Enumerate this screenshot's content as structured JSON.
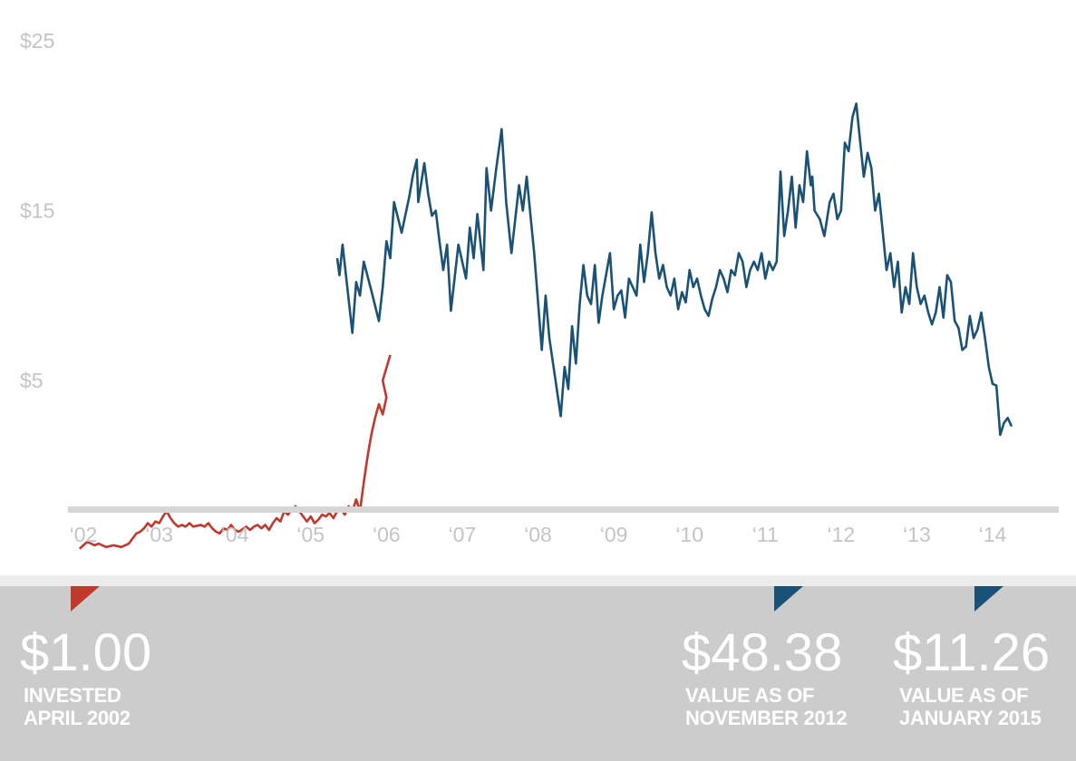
{
  "chart_data": {
    "type": "line",
    "ylim": [
      -6,
      27
    ],
    "y_ticks": [
      {
        "value": 25,
        "label": "$25"
      },
      {
        "value": 15,
        "label": "$15"
      },
      {
        "value": 5,
        "label": "$5"
      }
    ],
    "x_ticks": [
      {
        "value": 2002,
        "label": "‘02"
      },
      {
        "value": 2003,
        "label": "‘03"
      },
      {
        "value": 2004,
        "label": "‘04"
      },
      {
        "value": 2005,
        "label": "‘05"
      },
      {
        "value": 2006,
        "label": "‘06"
      },
      {
        "value": 2007,
        "label": "‘07"
      },
      {
        "value": 2008,
        "label": "‘08"
      },
      {
        "value": 2009,
        "label": "‘09"
      },
      {
        "value": 2010,
        "label": "‘10"
      },
      {
        "value": 2011,
        "label": "‘11"
      },
      {
        "value": 2012,
        "label": "‘12"
      },
      {
        "value": 2013,
        "label": "‘13"
      },
      {
        "value": 2014,
        "label": "‘14"
      }
    ],
    "xlim": [
      2001.85,
      2014.95
    ],
    "grid": false,
    "series": [
      {
        "color": "#c0392b",
        "points": [
          [
            2001.95,
            -4.9
          ],
          [
            2002.0,
            -4.7
          ],
          [
            2002.05,
            -4.5
          ],
          [
            2002.1,
            -4.6
          ],
          [
            2002.15,
            -4.7
          ],
          [
            2002.2,
            -4.6
          ],
          [
            2002.25,
            -4.7
          ],
          [
            2002.3,
            -4.8
          ],
          [
            2002.4,
            -4.7
          ],
          [
            2002.5,
            -4.8
          ],
          [
            2002.55,
            -4.7
          ],
          [
            2002.6,
            -4.6
          ],
          [
            2002.65,
            -4.3
          ],
          [
            2002.7,
            -4.0
          ],
          [
            2002.75,
            -3.9
          ],
          [
            2002.8,
            -3.7
          ],
          [
            2002.85,
            -3.4
          ],
          [
            2002.9,
            -3.6
          ],
          [
            2002.95,
            -3.3
          ],
          [
            2003.0,
            -3.4
          ],
          [
            2003.05,
            -3.0
          ],
          [
            2003.1,
            -2.7
          ],
          [
            2003.15,
            -3.1
          ],
          [
            2003.2,
            -3.4
          ],
          [
            2003.25,
            -3.6
          ],
          [
            2003.3,
            -3.5
          ],
          [
            2003.35,
            -3.6
          ],
          [
            2003.4,
            -3.4
          ],
          [
            2003.45,
            -3.6
          ],
          [
            2003.55,
            -3.5
          ],
          [
            2003.6,
            -3.6
          ],
          [
            2003.65,
            -3.4
          ],
          [
            2003.7,
            -3.7
          ],
          [
            2003.75,
            -3.9
          ],
          [
            2003.8,
            -4.0
          ],
          [
            2003.85,
            -3.7
          ],
          [
            2003.9,
            -3.8
          ],
          [
            2003.95,
            -3.5
          ],
          [
            2004.0,
            -3.8
          ],
          [
            2004.05,
            -3.9
          ],
          [
            2004.15,
            -3.6
          ],
          [
            2004.2,
            -3.8
          ],
          [
            2004.25,
            -3.6
          ],
          [
            2004.3,
            -3.5
          ],
          [
            2004.35,
            -3.7
          ],
          [
            2004.4,
            -3.5
          ],
          [
            2004.45,
            -3.8
          ],
          [
            2004.5,
            -3.4
          ],
          [
            2004.55,
            -3.1
          ],
          [
            2004.6,
            -3.3
          ],
          [
            2004.65,
            -2.7
          ],
          [
            2004.7,
            -2.9
          ],
          [
            2004.75,
            -2.6
          ],
          [
            2004.8,
            -2.4
          ],
          [
            2004.85,
            -2.7
          ],
          [
            2004.9,
            -3.0
          ],
          [
            2004.95,
            -3.3
          ],
          [
            2005.0,
            -3.0
          ],
          [
            2005.05,
            -3.4
          ],
          [
            2005.1,
            -3.2
          ],
          [
            2005.15,
            -2.9
          ],
          [
            2005.2,
            -3.0
          ],
          [
            2005.25,
            -2.8
          ],
          [
            2005.3,
            -3.1
          ],
          [
            2005.35,
            -2.7
          ],
          [
            2005.4,
            -2.6
          ],
          [
            2005.45,
            -2.9
          ],
          [
            2005.5,
            -2.4
          ],
          [
            2005.55,
            -2.7
          ],
          [
            2005.6,
            -2.0
          ],
          [
            2005.65,
            -2.7
          ],
          [
            2005.7,
            -1.0
          ],
          [
            2005.75,
            0.5
          ],
          [
            2005.8,
            1.8
          ],
          [
            2005.85,
            2.8
          ],
          [
            2005.9,
            3.6
          ],
          [
            2005.95,
            3.0
          ],
          [
            2006.0,
            4.0
          ],
          [
            2005.95,
            5.0
          ],
          [
            2006.05,
            6.5
          ]
        ]
      },
      {
        "color": "#1a5276",
        "points": [
          [
            2005.35,
            12.2
          ],
          [
            2005.38,
            11.2
          ],
          [
            2005.42,
            13.0
          ],
          [
            2005.55,
            7.8
          ],
          [
            2005.6,
            10.8
          ],
          [
            2005.65,
            10.0
          ],
          [
            2005.7,
            12.0
          ],
          [
            2005.8,
            10.3
          ],
          [
            2005.9,
            8.5
          ],
          [
            2005.95,
            10.5
          ],
          [
            2006.0,
            13.2
          ],
          [
            2006.05,
            12.2
          ],
          [
            2006.1,
            15.5
          ],
          [
            2006.2,
            13.7
          ],
          [
            2006.3,
            15.8
          ],
          [
            2006.35,
            17.1
          ],
          [
            2006.4,
            18.0
          ],
          [
            2006.42,
            15.5
          ],
          [
            2006.5,
            17.8
          ],
          [
            2006.55,
            16.0
          ],
          [
            2006.6,
            14.7
          ],
          [
            2006.65,
            15.0
          ],
          [
            2006.7,
            13.2
          ],
          [
            2006.75,
            11.5
          ],
          [
            2006.8,
            13.0
          ],
          [
            2006.85,
            9.1
          ],
          [
            2006.95,
            13.0
          ],
          [
            2007.05,
            11.0
          ],
          [
            2007.1,
            14.0
          ],
          [
            2007.15,
            12.2
          ],
          [
            2007.2,
            14.8
          ],
          [
            2007.28,
            11.5
          ],
          [
            2007.32,
            17.5
          ],
          [
            2007.38,
            15.0
          ],
          [
            2007.45,
            17.5
          ],
          [
            2007.52,
            19.8
          ],
          [
            2007.58,
            15.5
          ],
          [
            2007.65,
            12.5
          ],
          [
            2007.75,
            16.5
          ],
          [
            2007.8,
            15.0
          ],
          [
            2007.85,
            17.0
          ],
          [
            2007.95,
            12.5
          ],
          [
            2008.05,
            6.8
          ],
          [
            2008.1,
            10.0
          ],
          [
            2008.15,
            7.5
          ],
          [
            2008.3,
            2.9
          ],
          [
            2008.35,
            5.8
          ],
          [
            2008.4,
            4.5
          ],
          [
            2008.45,
            8.2
          ],
          [
            2008.5,
            6.0
          ],
          [
            2008.55,
            9.5
          ],
          [
            2008.6,
            11.8
          ],
          [
            2008.65,
            10.0
          ],
          [
            2008.7,
            9.5
          ],
          [
            2008.75,
            11.8
          ],
          [
            2008.8,
            8.4
          ],
          [
            2008.85,
            10.0
          ],
          [
            2008.95,
            12.5
          ],
          [
            2009.0,
            9.2
          ],
          [
            2009.05,
            10.0
          ],
          [
            2009.1,
            10.3
          ],
          [
            2009.15,
            8.7
          ],
          [
            2009.2,
            11.0
          ],
          [
            2009.25,
            10.5
          ],
          [
            2009.3,
            10.0
          ],
          [
            2009.35,
            13.0
          ],
          [
            2009.4,
            10.8
          ],
          [
            2009.45,
            12.5
          ],
          [
            2009.5,
            14.9
          ],
          [
            2009.55,
            12.5
          ],
          [
            2009.6,
            11.0
          ],
          [
            2009.65,
            11.8
          ],
          [
            2009.7,
            10.5
          ],
          [
            2009.75,
            10.0
          ],
          [
            2009.8,
            11.0
          ],
          [
            2009.85,
            9.2
          ],
          [
            2009.9,
            10.2
          ],
          [
            2009.95,
            9.6
          ],
          [
            2010.0,
            11.5
          ],
          [
            2010.05,
            10.5
          ],
          [
            2010.1,
            11.0
          ],
          [
            2010.15,
            10.0
          ],
          [
            2010.2,
            9.2
          ],
          [
            2010.25,
            8.8
          ],
          [
            2010.3,
            9.8
          ],
          [
            2010.35,
            10.5
          ],
          [
            2010.4,
            11.5
          ],
          [
            2010.45,
            11.0
          ],
          [
            2010.5,
            10.2
          ],
          [
            2010.55,
            11.5
          ],
          [
            2010.6,
            11.2
          ],
          [
            2010.65,
            12.5
          ],
          [
            2010.7,
            12.0
          ],
          [
            2010.75,
            10.5
          ],
          [
            2010.8,
            11.5
          ],
          [
            2010.85,
            12.0
          ],
          [
            2010.9,
            11.5
          ],
          [
            2010.95,
            12.5
          ],
          [
            2011.0,
            11.0
          ],
          [
            2011.05,
            12.0
          ],
          [
            2011.1,
            11.5
          ],
          [
            2011.15,
            12.0
          ],
          [
            2011.2,
            17.3
          ],
          [
            2011.25,
            13.5
          ],
          [
            2011.3,
            15.0
          ],
          [
            2011.35,
            17.0
          ],
          [
            2011.4,
            14.0
          ],
          [
            2011.45,
            16.5
          ],
          [
            2011.5,
            15.5
          ],
          [
            2011.55,
            18.5
          ],
          [
            2011.6,
            16.5
          ],
          [
            2011.62,
            17.0
          ],
          [
            2011.65,
            15.0
          ],
          [
            2011.72,
            14.5
          ],
          [
            2011.78,
            13.5
          ],
          [
            2011.85,
            15.5
          ],
          [
            2011.9,
            16.0
          ],
          [
            2011.95,
            14.5
          ],
          [
            2012.0,
            15.0
          ],
          [
            2012.05,
            19.0
          ],
          [
            2012.1,
            18.5
          ],
          [
            2012.15,
            20.5
          ],
          [
            2012.2,
            21.3
          ],
          [
            2012.3,
            17.0
          ],
          [
            2012.35,
            18.4
          ],
          [
            2012.4,
            17.5
          ],
          [
            2012.45,
            15.0
          ],
          [
            2012.5,
            16.0
          ],
          [
            2012.6,
            11.5
          ],
          [
            2012.65,
            12.5
          ],
          [
            2012.7,
            10.5
          ],
          [
            2012.75,
            12.0
          ],
          [
            2012.8,
            9.0
          ],
          [
            2012.85,
            10.5
          ],
          [
            2012.9,
            9.5
          ],
          [
            2012.95,
            12.5
          ],
          [
            2013.0,
            10.5
          ],
          [
            2013.05,
            9.5
          ],
          [
            2013.1,
            10.0
          ],
          [
            2013.15,
            9.0
          ],
          [
            2013.2,
            8.3
          ],
          [
            2013.25,
            9.0
          ],
          [
            2013.3,
            10.5
          ],
          [
            2013.35,
            8.7
          ],
          [
            2013.4,
            11.2
          ],
          [
            2013.45,
            10.8
          ],
          [
            2013.5,
            8.5
          ],
          [
            2013.55,
            8.1
          ],
          [
            2013.6,
            6.8
          ],
          [
            2013.65,
            7.0
          ],
          [
            2013.7,
            8.8
          ],
          [
            2013.75,
            7.5
          ],
          [
            2013.8,
            8.0
          ],
          [
            2013.85,
            9.0
          ],
          [
            2013.9,
            7.5
          ],
          [
            2013.95,
            5.8
          ],
          [
            2014.0,
            4.8
          ],
          [
            2014.05,
            4.7
          ],
          [
            2014.1,
            1.8
          ],
          [
            2014.15,
            2.5
          ],
          [
            2014.2,
            2.8
          ],
          [
            2014.25,
            2.3
          ]
        ]
      }
    ]
  },
  "stats": [
    {
      "value": "$1.00",
      "line1": "INVESTED",
      "line2": "APRIL 2002",
      "flag_color": "#c0392b"
    },
    {
      "value": "$48.38",
      "line1": "VALUE AS OF",
      "line2": "NOVEMBER 2012",
      "flag_color": "#1a5276"
    },
    {
      "value": "$11.26",
      "line1": "VALUE AS OF",
      "line2": "JANUARY 2015",
      "flag_color": "#1a5276"
    }
  ]
}
